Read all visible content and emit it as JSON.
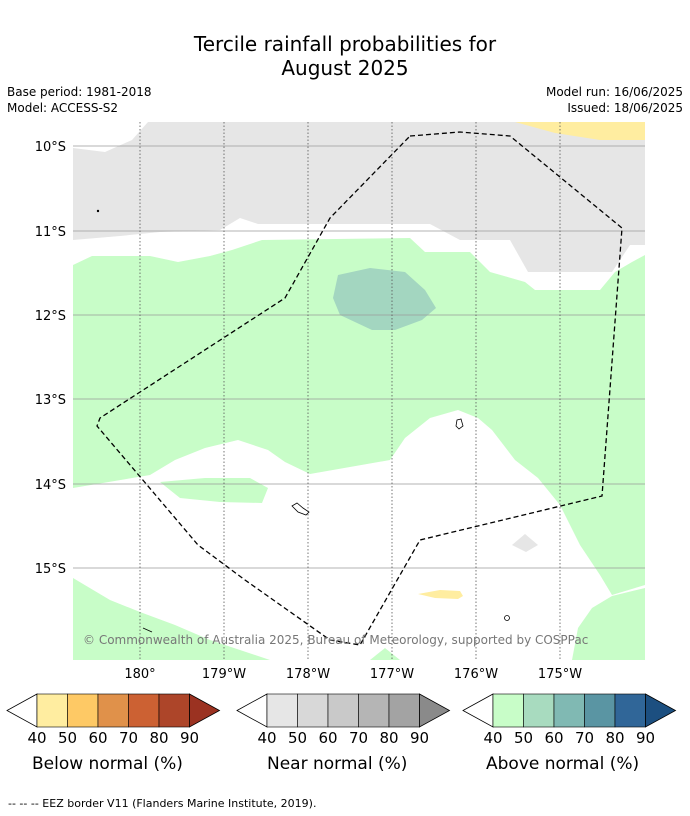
{
  "title_line1": "Tercile rainfall probabilities for",
  "title_line2": "August 2025",
  "meta": {
    "base_period": "Base period: 1981-2018",
    "model": "Model: ACCESS-S2",
    "model_run": "Model run: 16/06/2025",
    "issued": "Issued: 18/06/2025"
  },
  "lat_labels": [
    "10°S",
    "11°S",
    "12°S",
    "13°S",
    "14°S",
    "15°S"
  ],
  "lon_labels": [
    "180°",
    "179°W",
    "178°W",
    "177°W",
    "176°W",
    "175°W"
  ],
  "copyright": "© Commonwealth of Australia 2025, Bureau of Meteorology, supported by COSPPac",
  "legends": [
    {
      "name": "below",
      "title": "Below normal (%)",
      "ticks": [
        "40",
        "50",
        "60",
        "70",
        "80",
        "90"
      ],
      "colors": [
        "#ffeda0",
        "#fec965",
        "#e0914a",
        "#cc6133",
        "#ad4529",
        "#9b3221"
      ]
    },
    {
      "name": "near",
      "title": "Near normal (%)",
      "ticks": [
        "40",
        "50",
        "60",
        "70",
        "80",
        "90"
      ],
      "colors": [
        "#e6e6e6",
        "#d8d8d8",
        "#c9c9c9",
        "#b5b5b5",
        "#a3a3a3",
        "#8a8a8a"
      ]
    },
    {
      "name": "above",
      "title": "Above normal (%)",
      "ticks": [
        "40",
        "50",
        "60",
        "70",
        "80",
        "90"
      ],
      "colors": [
        "#c8fdc8",
        "#a8dbbf",
        "#80b9b3",
        "#5a95a3",
        "#306698",
        "#1c4f80"
      ]
    }
  ],
  "footnote": "--  --  -- EEZ border V11 (Flanders Marine Institute, 2019)."
}
